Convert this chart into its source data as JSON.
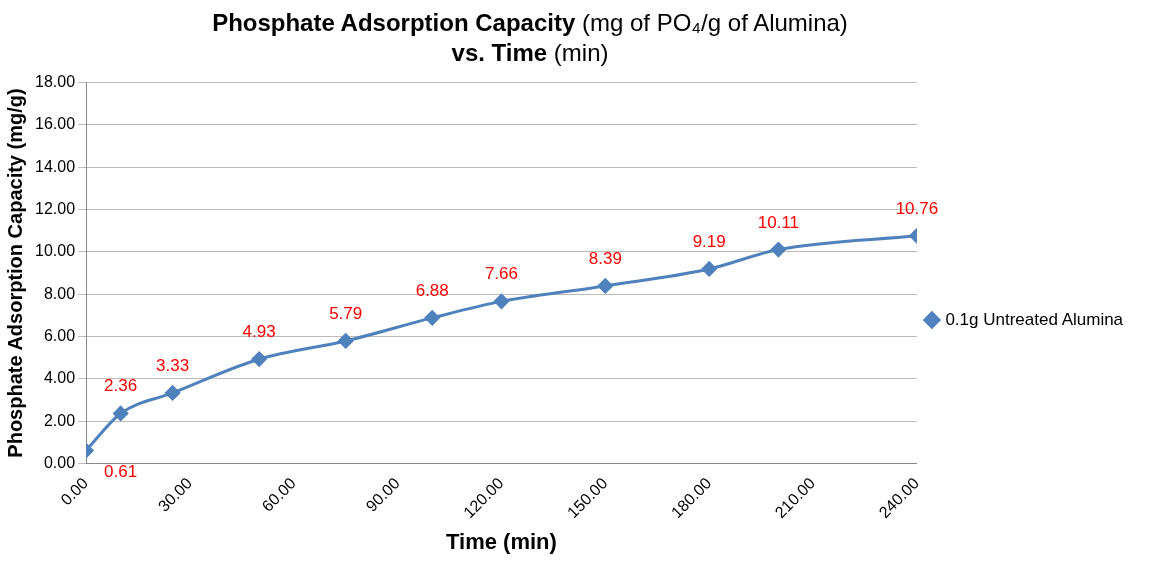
{
  "chart_data": {
    "type": "line",
    "title": "Phosphate Adsorption Capacity (mg of PO₄/g of Alumina)",
    "subtitle": "vs. Time (min)",
    "xlabel": "Time (min)",
    "ylabel": "Phosphate Adsorption Capacity (mg/g)",
    "x": [
      0,
      10,
      25,
      50,
      75,
      100,
      120,
      150,
      180,
      200,
      240
    ],
    "series": [
      {
        "name": "0.1g Untreated Alumina",
        "color": "#4f81bd",
        "values": [
          0.61,
          2.36,
          3.33,
          4.93,
          5.79,
          6.88,
          7.66,
          8.39,
          9.19,
          10.11,
          10.76
        ]
      }
    ],
    "xlim": [
      0,
      240
    ],
    "xticks": [
      {
        "value": 0,
        "label": "0.00"
      },
      {
        "value": 30,
        "label": "30.00"
      },
      {
        "value": 60,
        "label": "60.00"
      },
      {
        "value": 90,
        "label": "90.00"
      },
      {
        "value": 120,
        "label": "120.00"
      },
      {
        "value": 150,
        "label": "150.00"
      },
      {
        "value": 180,
        "label": "180.00"
      },
      {
        "value": 210,
        "label": "210.00"
      },
      {
        "value": 240,
        "label": "240.00"
      }
    ],
    "ylim": [
      0,
      18
    ],
    "yticks": [
      {
        "value": 0,
        "label": "0.00"
      },
      {
        "value": 2,
        "label": "2.00"
      },
      {
        "value": 4,
        "label": "4.00"
      },
      {
        "value": 6,
        "label": "6.00"
      },
      {
        "value": 8,
        "label": "8.00"
      },
      {
        "value": 10,
        "label": "10.00"
      },
      {
        "value": 12,
        "label": "12.00"
      },
      {
        "value": 14,
        "label": "14.00"
      },
      {
        "value": 16,
        "label": "16.00"
      },
      {
        "value": 18,
        "label": "18.00"
      }
    ],
    "grid": "y",
    "legend": "right",
    "marker": "diamond",
    "line_style": "solid",
    "data_labels": true
  }
}
